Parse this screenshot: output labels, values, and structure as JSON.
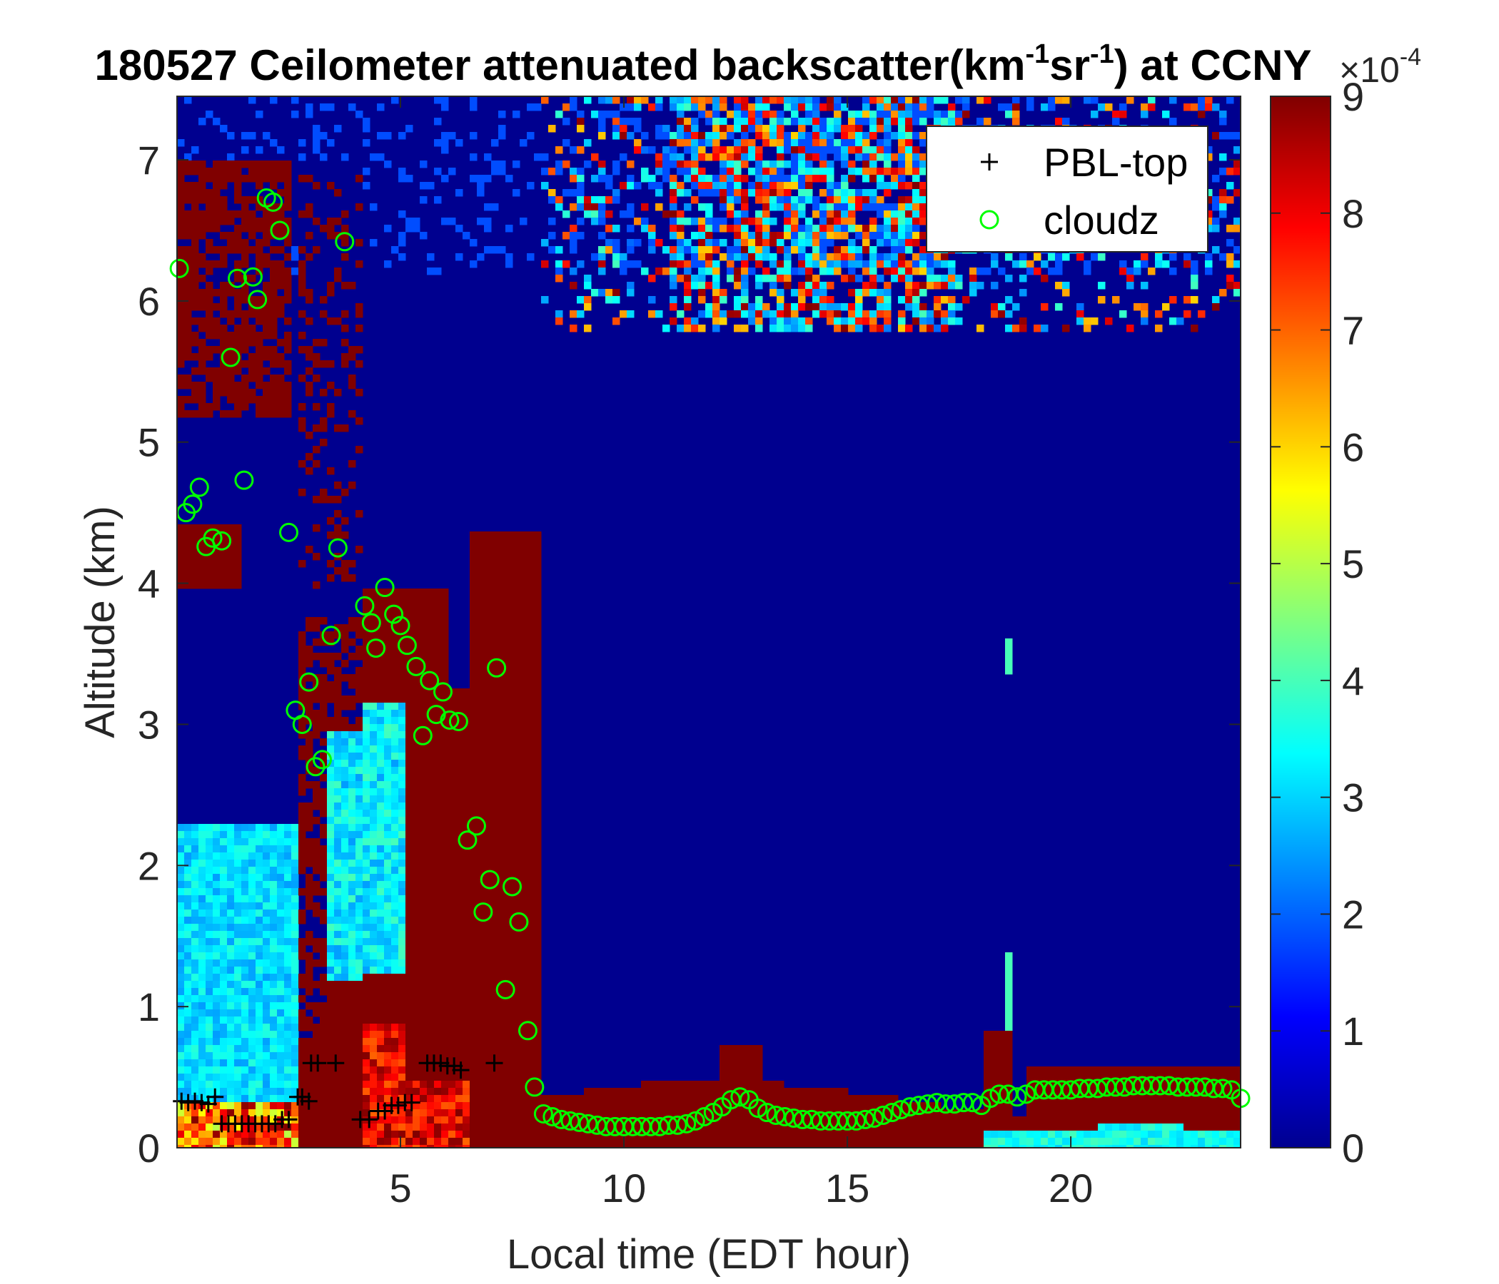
{
  "chart_data": {
    "type": "heatmap",
    "title": {
      "prefix": "180527 Ceilometer attenuated backscatter(km",
      "sup1": "-1",
      "mid": "sr",
      "sup2": "-1",
      "suffix": ") at CCNY"
    },
    "xlabel": "Local time (EDT hour)",
    "ylabel": "Altitude (km)",
    "xlim": [
      0,
      23.8
    ],
    "ylim": [
      0,
      7.45
    ],
    "xticks": [
      5,
      10,
      15,
      20
    ],
    "yticks": [
      0,
      1,
      2,
      3,
      4,
      5,
      6,
      7
    ],
    "colorbar": {
      "colormap": "jet",
      "range": [
        0,
        9
      ],
      "ticks": [
        0,
        1,
        2,
        3,
        4,
        5,
        6,
        7,
        8,
        9
      ],
      "exponent_base": "×10",
      "exponent_power": "-4"
    },
    "legend": {
      "position": "top-right",
      "entries": [
        {
          "label": "PBL-top",
          "marker": "+",
          "color": "#000000"
        },
        {
          "label": "cloudz",
          "marker": "o",
          "color": "#00ff00"
        }
      ]
    },
    "series": [
      {
        "name": "PBL-top",
        "marker": "+",
        "points": [
          [
            0.1,
            0.33
          ],
          [
            0.25,
            0.32
          ],
          [
            0.4,
            0.33
          ],
          [
            0.55,
            0.32
          ],
          [
            0.7,
            0.31
          ],
          [
            0.85,
            0.36
          ],
          [
            1.0,
            0.17
          ],
          [
            1.15,
            0.17
          ],
          [
            1.3,
            0.17
          ],
          [
            1.45,
            0.17
          ],
          [
            1.6,
            0.17
          ],
          [
            1.75,
            0.17
          ],
          [
            1.9,
            0.17
          ],
          [
            2.05,
            0.17
          ],
          [
            2.2,
            0.17
          ],
          [
            2.35,
            0.2
          ],
          [
            2.5,
            0.2
          ],
          [
            2.7,
            0.36
          ],
          [
            2.8,
            0.36
          ],
          [
            2.95,
            0.33
          ],
          [
            3.0,
            0.6
          ],
          [
            3.15,
            0.6
          ],
          [
            3.55,
            0.6
          ],
          [
            4.1,
            0.2
          ],
          [
            4.3,
            0.2
          ],
          [
            4.5,
            0.26
          ],
          [
            4.65,
            0.26
          ],
          [
            4.8,
            0.3
          ],
          [
            4.95,
            0.3
          ],
          [
            5.1,
            0.32
          ],
          [
            5.25,
            0.32
          ],
          [
            5.6,
            0.6
          ],
          [
            5.75,
            0.6
          ],
          [
            5.9,
            0.6
          ],
          [
            6.05,
            0.58
          ],
          [
            6.2,
            0.58
          ],
          [
            6.35,
            0.55
          ],
          [
            7.1,
            0.6
          ]
        ]
      },
      {
        "name": "cloudz",
        "marker": "o",
        "points": [
          [
            0.05,
            6.23
          ],
          [
            0.2,
            4.5
          ],
          [
            0.35,
            4.56
          ],
          [
            0.5,
            4.68
          ],
          [
            0.65,
            4.26
          ],
          [
            0.8,
            4.32
          ],
          [
            1.0,
            4.3
          ],
          [
            1.2,
            5.6
          ],
          [
            1.35,
            6.16
          ],
          [
            1.5,
            4.73
          ],
          [
            1.7,
            6.17
          ],
          [
            1.8,
            6.01
          ],
          [
            2.0,
            6.73
          ],
          [
            2.15,
            6.7
          ],
          [
            2.3,
            6.5
          ],
          [
            2.5,
            4.36
          ],
          [
            2.65,
            3.1
          ],
          [
            2.8,
            3.0
          ],
          [
            2.95,
            3.3
          ],
          [
            3.1,
            2.7
          ],
          [
            3.25,
            2.75
          ],
          [
            3.45,
            3.63
          ],
          [
            3.6,
            4.25
          ],
          [
            3.75,
            6.42
          ],
          [
            4.2,
            3.84
          ],
          [
            4.35,
            3.72
          ],
          [
            4.45,
            3.54
          ],
          [
            4.65,
            3.97
          ],
          [
            4.85,
            3.78
          ],
          [
            5.0,
            3.7
          ],
          [
            5.15,
            3.56
          ],
          [
            5.35,
            3.41
          ],
          [
            5.5,
            2.92
          ],
          [
            5.65,
            3.31
          ],
          [
            5.8,
            3.07
          ],
          [
            5.95,
            3.23
          ],
          [
            6.1,
            3.03
          ],
          [
            6.3,
            3.02
          ],
          [
            6.5,
            2.18
          ],
          [
            6.7,
            2.28
          ],
          [
            6.85,
            1.67
          ],
          [
            7.0,
            1.9
          ],
          [
            7.15,
            3.4
          ],
          [
            7.35,
            1.12
          ],
          [
            7.5,
            1.85
          ],
          [
            7.65,
            1.6
          ],
          [
            7.85,
            0.83
          ],
          [
            8.0,
            0.43
          ],
          [
            8.2,
            0.24
          ],
          [
            8.4,
            0.22
          ],
          [
            8.6,
            0.2
          ],
          [
            8.8,
            0.19
          ],
          [
            9.0,
            0.18
          ],
          [
            9.2,
            0.17
          ],
          [
            9.4,
            0.16
          ],
          [
            9.6,
            0.15
          ],
          [
            9.8,
            0.15
          ],
          [
            10.0,
            0.15
          ],
          [
            10.2,
            0.15
          ],
          [
            10.4,
            0.15
          ],
          [
            10.6,
            0.15
          ],
          [
            10.8,
            0.15
          ],
          [
            11.0,
            0.16
          ],
          [
            11.2,
            0.16
          ],
          [
            11.4,
            0.17
          ],
          [
            11.6,
            0.19
          ],
          [
            11.8,
            0.22
          ],
          [
            12.0,
            0.25
          ],
          [
            12.2,
            0.29
          ],
          [
            12.4,
            0.34
          ],
          [
            12.6,
            0.36
          ],
          [
            12.8,
            0.34
          ],
          [
            13.0,
            0.28
          ],
          [
            13.2,
            0.25
          ],
          [
            13.4,
            0.23
          ],
          [
            13.6,
            0.22
          ],
          [
            13.8,
            0.21
          ],
          [
            14.0,
            0.2
          ],
          [
            14.2,
            0.2
          ],
          [
            14.4,
            0.19
          ],
          [
            14.6,
            0.19
          ],
          [
            14.8,
            0.19
          ],
          [
            15.0,
            0.19
          ],
          [
            15.2,
            0.19
          ],
          [
            15.4,
            0.2
          ],
          [
            15.6,
            0.21
          ],
          [
            15.8,
            0.23
          ],
          [
            16.0,
            0.25
          ],
          [
            16.2,
            0.27
          ],
          [
            16.4,
            0.29
          ],
          [
            16.6,
            0.3
          ],
          [
            16.8,
            0.31
          ],
          [
            17.0,
            0.32
          ],
          [
            17.2,
            0.31
          ],
          [
            17.4,
            0.31
          ],
          [
            17.6,
            0.32
          ],
          [
            17.8,
            0.32
          ],
          [
            18.0,
            0.3
          ],
          [
            18.2,
            0.35
          ],
          [
            18.4,
            0.38
          ],
          [
            18.6,
            0.38
          ],
          [
            18.8,
            0.36
          ],
          [
            19.0,
            0.38
          ],
          [
            19.2,
            0.41
          ],
          [
            19.4,
            0.41
          ],
          [
            19.6,
            0.41
          ],
          [
            19.8,
            0.41
          ],
          [
            20.0,
            0.41
          ],
          [
            20.2,
            0.42
          ],
          [
            20.4,
            0.42
          ],
          [
            20.6,
            0.42
          ],
          [
            20.8,
            0.43
          ],
          [
            21.0,
            0.43
          ],
          [
            21.2,
            0.43
          ],
          [
            21.4,
            0.44
          ],
          [
            21.6,
            0.44
          ],
          [
            21.8,
            0.44
          ],
          [
            22.0,
            0.44
          ],
          [
            22.2,
            0.44
          ],
          [
            22.4,
            0.43
          ],
          [
            22.6,
            0.43
          ],
          [
            22.8,
            0.43
          ],
          [
            23.0,
            0.43
          ],
          [
            23.2,
            0.42
          ],
          [
            23.4,
            0.42
          ],
          [
            23.6,
            0.41
          ],
          [
            23.8,
            0.35
          ]
        ]
      }
    ]
  }
}
